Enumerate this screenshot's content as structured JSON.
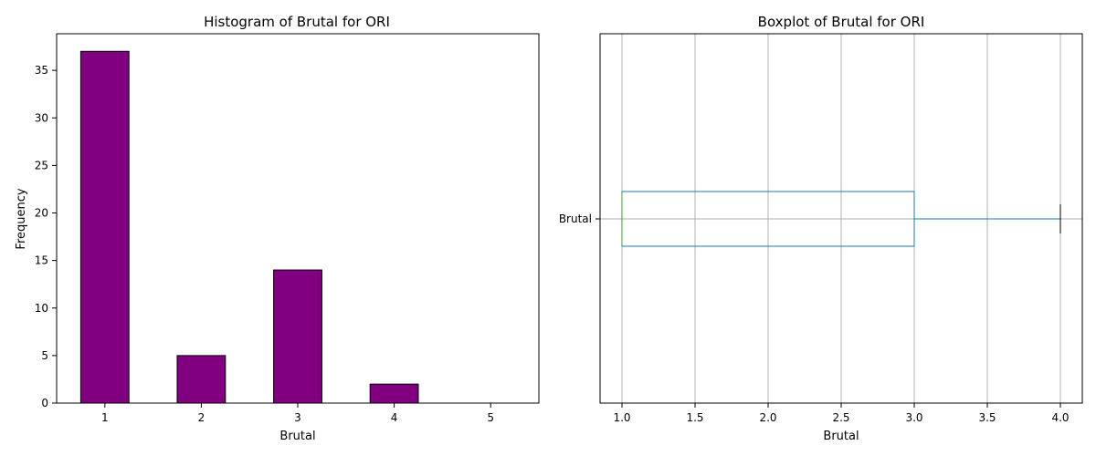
{
  "chart_data": [
    {
      "type": "bar",
      "title": "Histogram of Brutal for ORI",
      "xlabel": "Brutal",
      "ylabel": "Frequency",
      "categories": [
        "1",
        "2",
        "3",
        "4",
        "5"
      ],
      "values": [
        37,
        5,
        14,
        2,
        0
      ],
      "ylim": [
        0,
        38.85
      ],
      "yticks": [
        0,
        5,
        10,
        15,
        20,
        25,
        30,
        35
      ],
      "bar_color": "#800080",
      "edge_color": "#000000",
      "grid": false
    },
    {
      "type": "boxplot",
      "title": "Boxplot of Brutal for ORI",
      "xlabel": "Brutal",
      "category": "Brutal",
      "min": 1.0,
      "q1": 1.0,
      "median": 1.0,
      "q3": 3.0,
      "max": 4.0,
      "xlim": [
        0.85,
        4.15
      ],
      "xticks": [
        "1.0",
        "1.5",
        "2.0",
        "2.5",
        "3.0",
        "3.5",
        "4.0"
      ],
      "box_color": "#1f77b4",
      "median_color": "#2ca02c",
      "grid": true
    }
  ]
}
